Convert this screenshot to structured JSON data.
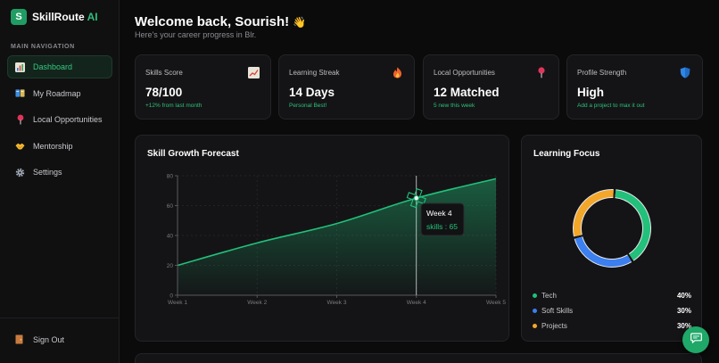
{
  "app": {
    "logo_letter": "S",
    "name": "SkillRoute",
    "name_accent": "AI"
  },
  "sidebar": {
    "heading": "MAIN NAVIGATION",
    "items": [
      {
        "label": "Dashboard",
        "icon": "bar-chart-icon",
        "active": true
      },
      {
        "label": "My Roadmap",
        "icon": "book-icon",
        "active": false
      },
      {
        "label": "Local Opportunities",
        "icon": "pin-icon",
        "active": false
      },
      {
        "label": "Mentorship",
        "icon": "handshake-icon",
        "active": false
      },
      {
        "label": "Settings",
        "icon": "gear-icon",
        "active": false
      }
    ],
    "signout": "Sign Out"
  },
  "header": {
    "welcome": "Welcome back, Sourish!",
    "wave": "👋",
    "subtitle": "Here's your career progress in Blr."
  },
  "stats": [
    {
      "title": "Skills Score",
      "value": "78/100",
      "sub": "+12% from last month",
      "icon": "trend-chart-icon"
    },
    {
      "title": "Learning Streak",
      "value": "14 Days",
      "sub": "Personal Best!",
      "icon": "fire-icon"
    },
    {
      "title": "Local Opportunities",
      "value": "12 Matched",
      "sub": "5 new this week",
      "icon": "pin-icon"
    },
    {
      "title": "Profile Strength",
      "value": "High",
      "sub": "Add a project to max it out",
      "icon": "shield-icon"
    }
  ],
  "forecast": {
    "title": "Skill Growth Forecast",
    "tooltip": {
      "label": "Week 4",
      "series": "skills",
      "value": "65"
    }
  },
  "chart_data": [
    {
      "type": "area",
      "title": "Skill Growth Forecast",
      "categories": [
        "Week 1",
        "Week 2",
        "Week 3",
        "Week 4",
        "Week 5"
      ],
      "series": [
        {
          "name": "skills",
          "values": [
            20,
            35,
            48,
            65,
            78
          ]
        }
      ],
      "ylim": [
        0,
        80
      ],
      "yticks": [
        "0",
        "20",
        "40",
        "60",
        "80"
      ],
      "grid": true,
      "color": "#22c07a"
    },
    {
      "type": "pie",
      "title": "Learning Focus",
      "categories": [
        "Tech",
        "Soft Skills",
        "Projects"
      ],
      "values": [
        40,
        30,
        30
      ],
      "labels": [
        "40%",
        "30%",
        "30%"
      ],
      "colors": [
        "#22c07a",
        "#3b7ff0",
        "#f2a72a"
      ]
    }
  ],
  "focus": {
    "title": "Learning Focus"
  }
}
